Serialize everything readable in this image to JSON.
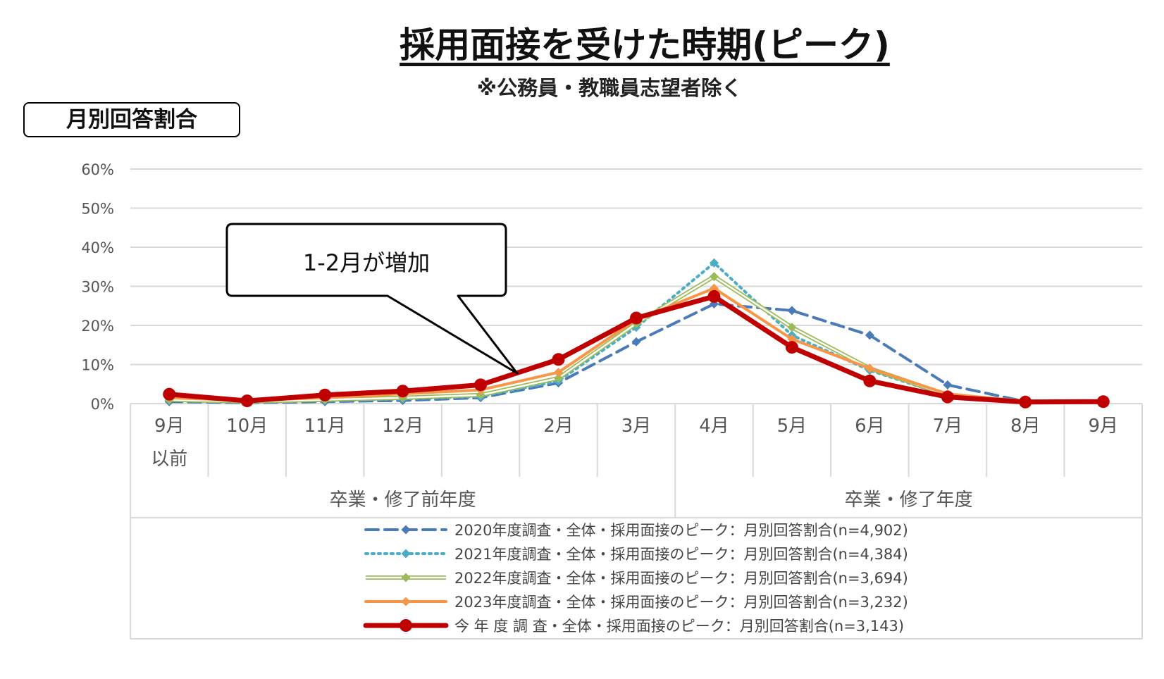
{
  "title": "採用面接を受けた時期(ピーク)",
  "subtitle": "※公務員・教職員志望者除く",
  "panel_label": "月別回答割合",
  "callout": "1-2月が増加",
  "chart_data": {
    "type": "line",
    "ylim": [
      0,
      60
    ],
    "yticks": [
      "0%",
      "10%",
      "20%",
      "30%",
      "40%",
      "50%",
      "60%"
    ],
    "categories": [
      "9月",
      "10月",
      "11月",
      "12月",
      "1月",
      "2月",
      "3月",
      "4月",
      "5月",
      "6月",
      "7月",
      "8月",
      "9月"
    ],
    "category_sublabels": [
      "以前",
      "",
      "",
      "",
      "",
      "",
      "",
      "",
      "",
      "",
      "",
      "",
      ""
    ],
    "groups": [
      {
        "label": "卒業・修了前年度",
        "from": 0,
        "to": 6
      },
      {
        "label": "卒業・修了年度",
        "from": 7,
        "to": 12
      }
    ],
    "grid": true,
    "legend_position": "bottom",
    "series": [
      {
        "name": "2020年度調査・全体・採用面接のピーク：月別回答割合(n=4,902)",
        "color": "#4a7ab8",
        "style": "dashed",
        "marker": "diamond",
        "values": [
          0.5,
          0.2,
          0.5,
          0.8,
          1.5,
          5.3,
          15.8,
          25.5,
          23.8,
          17.5,
          4.8,
          0.5,
          0.4
        ]
      },
      {
        "name": "2021年度調査・全体・採用面接のピーク：月別回答割合(n=4,384)",
        "color": "#4bacc6",
        "style": "dotted",
        "marker": "diamond",
        "values": [
          0.8,
          0.3,
          0.8,
          1.2,
          1.8,
          5.8,
          19.5,
          36.0,
          17.5,
          8.5,
          2.0,
          0.5,
          0.4
        ]
      },
      {
        "name": "2022年度調査・全体・採用面接のピーク：月別回答割合(n=3,694)",
        "color": "#9bbb59",
        "style": "double",
        "marker": "diamond",
        "values": [
          1.0,
          0.5,
          1.0,
          1.5,
          2.2,
          6.5,
          20.5,
          32.5,
          19.5,
          9.0,
          2.2,
          0.5,
          0.4
        ]
      },
      {
        "name": "2023年度調査・全体・採用面接のピーク：月別回答割合(n=3,232)",
        "color": "#f79646",
        "style": "solid",
        "marker": "diamond",
        "values": [
          1.5,
          0.8,
          1.5,
          2.5,
          3.5,
          8.0,
          21.5,
          29.5,
          16.5,
          9.0,
          2.5,
          0.5,
          0.4
        ]
      },
      {
        "name": "今 年 度 調 査・全体・採用面接のピーク：月別回答割合(n=3,143)",
        "color": "#c00000",
        "style": "bold",
        "marker": "circle",
        "values": [
          2.4,
          0.7,
          2.2,
          3.2,
          4.8,
          11.3,
          21.9,
          27.4,
          14.4,
          5.8,
          1.7,
          0.4,
          0.5
        ]
      }
    ]
  }
}
